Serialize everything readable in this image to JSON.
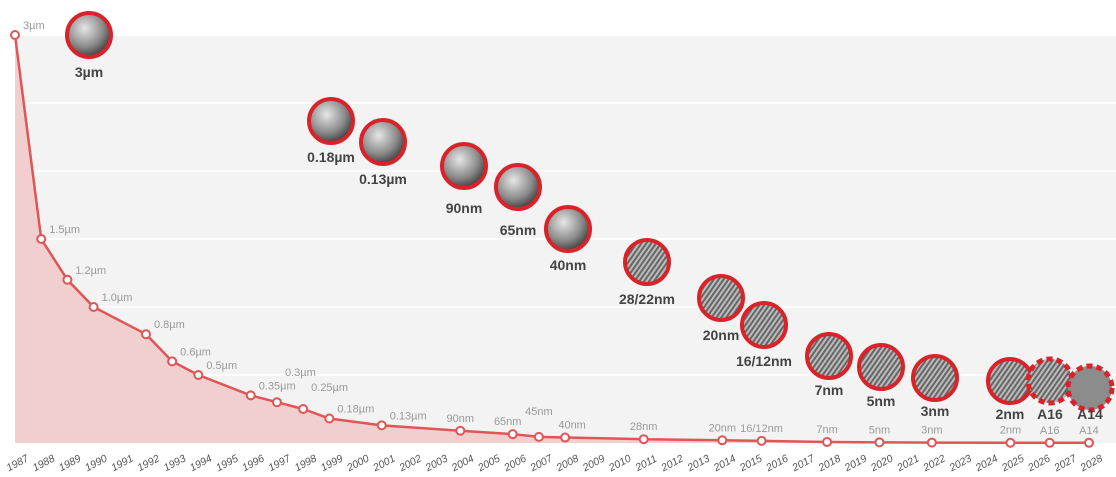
{
  "chart_data": {
    "type": "area",
    "xlabel": "",
    "ylabel": "",
    "xlim": [
      1987,
      2028
    ],
    "ylim": [
      0,
      3
    ],
    "grid": true,
    "x_ticks": [
      "1987",
      "1988",
      "1989",
      "1990",
      "1991",
      "1992",
      "1993",
      "1994",
      "1995",
      "1996",
      "1997",
      "1998",
      "1999",
      "2000",
      "2001",
      "2002",
      "2003",
      "2004",
      "2005",
      "2006",
      "2007",
      "2008",
      "2009",
      "2010",
      "2011",
      "2012",
      "2013",
      "2014",
      "2015",
      "2016",
      "2017",
      "2018",
      "2019",
      "2020",
      "2021",
      "2022",
      "2023",
      "2024",
      "2025",
      "2026",
      "2027",
      "2028"
    ],
    "colors": {
      "line": "#e05656",
      "fill": "#f2cfcf",
      "plot_bg": "#f3f3f3",
      "bubble_border": "#d8232a",
      "label": "#999999",
      "bubble_label": "#444444"
    },
    "points": [
      {
        "x": 1987,
        "y": 3.0,
        "label": "3µm"
      },
      {
        "x": 1988,
        "y": 1.5,
        "label": "1.5µm"
      },
      {
        "x": 1989,
        "y": 1.2,
        "label": "1.2µm"
      },
      {
        "x": 1990,
        "y": 1.0,
        "label": "1.0µm"
      },
      {
        "x": 1992,
        "y": 0.8,
        "label": "0.8µm"
      },
      {
        "x": 1993,
        "y": 0.6,
        "label": "0.6µm"
      },
      {
        "x": 1994,
        "y": 0.5,
        "label": "0.5µm"
      },
      {
        "x": 1996,
        "y": 0.35,
        "label": "0.35µm"
      },
      {
        "x": 1997,
        "y": 0.3,
        "label": "0.3µm"
      },
      {
        "x": 1998,
        "y": 0.25,
        "label": "0.25µm"
      },
      {
        "x": 1999,
        "y": 0.18,
        "label": "0.18µm"
      },
      {
        "x": 2001,
        "y": 0.13,
        "label": "0.13µm"
      },
      {
        "x": 2004,
        "y": 0.09,
        "label": "90nm"
      },
      {
        "x": 2006,
        "y": 0.065,
        "label": "65nm"
      },
      {
        "x": 2007,
        "y": 0.045,
        "label": "45nm"
      },
      {
        "x": 2008,
        "y": 0.04,
        "label": "40nm"
      },
      {
        "x": 2011,
        "y": 0.028,
        "label": "28nm"
      },
      {
        "x": 2014,
        "y": 0.02,
        "label": "20nm"
      },
      {
        "x": 2015.5,
        "y": 0.016,
        "label": "16/12nm"
      },
      {
        "x": 2018,
        "y": 0.007,
        "label": "7nm"
      },
      {
        "x": 2020,
        "y": 0.005,
        "label": "5nm"
      },
      {
        "x": 2022,
        "y": 0.003,
        "label": "3nm"
      },
      {
        "x": 2025,
        "y": 0.002,
        "label": "2nm"
      },
      {
        "x": 2026.5,
        "y": 0.0016,
        "label": "A16"
      },
      {
        "x": 2028,
        "y": 0.0014,
        "label": "A14"
      }
    ],
    "annotations": [
      {
        "label": "3µm",
        "image": "sem-3um",
        "future": false
      },
      {
        "label": "0.18µm",
        "image": "sem-0.18um",
        "future": false
      },
      {
        "label": "0.13µm",
        "image": "sem-0.13um",
        "future": false
      },
      {
        "label": "90nm",
        "image": "sem-90nm",
        "future": false
      },
      {
        "label": "65nm",
        "image": "sem-65nm",
        "future": false
      },
      {
        "label": "40nm",
        "image": "sem-40nm",
        "future": false
      },
      {
        "label": "28/22nm",
        "image": "sem-28-22nm",
        "future": false
      },
      {
        "label": "20nm",
        "image": "sem-20nm",
        "future": false
      },
      {
        "label": "16/12nm",
        "image": "sem-16-12nm",
        "future": false
      },
      {
        "label": "7nm",
        "image": "sem-7nm",
        "future": false
      },
      {
        "label": "5nm",
        "image": "sem-5nm",
        "future": false
      },
      {
        "label": "3nm",
        "image": "sem-3nm",
        "future": false
      },
      {
        "label": "2nm",
        "image": "sem-2nm",
        "future": false
      },
      {
        "label": "A16",
        "image": "sem-a16",
        "future": true
      },
      {
        "label": "A14",
        "image": "placeholder-grey",
        "future": true
      }
    ]
  }
}
